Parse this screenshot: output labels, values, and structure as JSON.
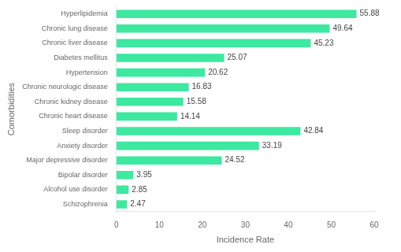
{
  "chart_data": {
    "type": "bar",
    "orientation": "horizontal",
    "categories": [
      "Schizophrenia",
      "Alcohol use disorder",
      "Bipolar disorder",
      "Major depressive disorder",
      "Anxiety disorder",
      "Sleep disorder",
      "Chronic heart disease",
      "Chronic kidney disease",
      "Chronic neurologic disease",
      "Hypertension",
      "Diabetes mellitus",
      "Chronic liver disease",
      "Chronic lung disease",
      "Hyperlipidemia"
    ],
    "values": [
      2.47,
      2.85,
      3.95,
      24.52,
      33.19,
      42.84,
      14.14,
      15.58,
      16.83,
      20.62,
      25.07,
      45.23,
      49.64,
      55.88
    ],
    "color": "#3de8a0",
    "xlabel": "Incidence Rate",
    "ylabel": "Comorbidities",
    "xlim": [
      0,
      60
    ],
    "xticks": [
      0,
      10,
      20,
      30,
      40,
      50,
      60
    ],
    "grid": false,
    "data_labels": true
  }
}
